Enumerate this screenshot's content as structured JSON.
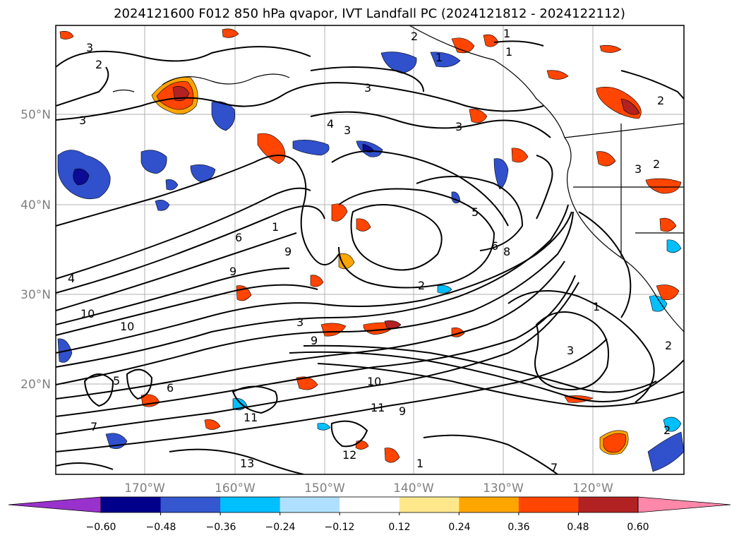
{
  "title": "2024121600 F012 850 hPa qvapor, IVT Landfall PC (2024121812 - 2024122112)",
  "map": {
    "lat_ticks": [
      "50°N",
      "40°N",
      "30°N",
      "20°N"
    ],
    "lon_ticks": [
      "170°W",
      "160°W",
      "150°W",
      "140°W",
      "130°W",
      "120°W"
    ],
    "contour_labels": [
      "3",
      "2",
      "3",
      "3",
      "3",
      "4",
      "3",
      "1",
      "2",
      "1",
      "1",
      "2",
      "4",
      "5",
      "6",
      "9",
      "9",
      "1",
      "6",
      "10",
      "10",
      "3",
      "9",
      "2",
      "3",
      "10",
      "7",
      "11",
      "11",
      "13",
      "12",
      "5",
      "6",
      "7",
      "1",
      "2",
      "3",
      "2",
      "9",
      "1",
      "8",
      "2"
    ],
    "shading_colors": {
      "negative_medium": "#3050cc",
      "negative_dark": "#0b0b96",
      "negative_light": "#00bfff",
      "positive_orange": "#ffa500",
      "positive_red": "#ff4500",
      "positive_darkred": "#b22222"
    }
  },
  "colorbar": {
    "tick_labels": [
      "−0.60",
      "−0.48",
      "−0.36",
      "−0.24",
      "−0.12",
      "0.12",
      "0.24",
      "0.36",
      "0.48",
      "0.60"
    ],
    "segment_colors": [
      "#9932cc",
      "#00008b",
      "#3557cf",
      "#00bfff",
      "#b0e0ff",
      "#ffffff",
      "#ffe88c",
      "#ffa500",
      "#ff4500",
      "#b22222",
      "#ff88aa"
    ]
  }
}
